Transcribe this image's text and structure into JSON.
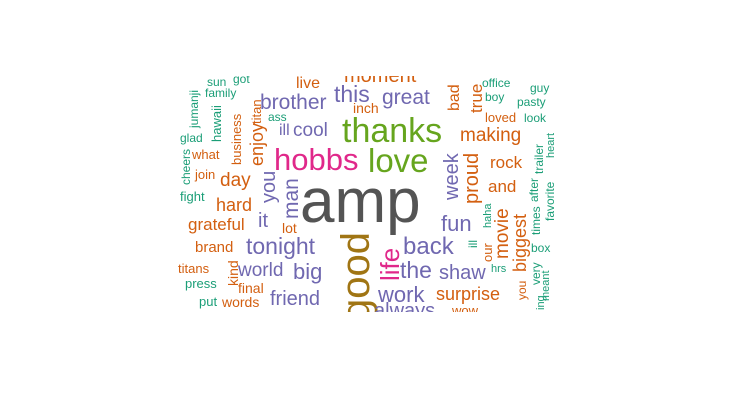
{
  "palette": {
    "grey": "#545454",
    "orange": "#d35f10",
    "purple": "#7068b0",
    "green": "#66a51e",
    "pink": "#e0288a",
    "gold": "#a07514",
    "teal": "#1b9e77"
  },
  "words": [
    {
      "text": "amp",
      "color": "grey"
    },
    {
      "text": "good",
      "color": "gold"
    },
    {
      "text": "thanks",
      "color": "green"
    },
    {
      "text": "love",
      "color": "green"
    },
    {
      "text": "hobbs",
      "color": "pink"
    },
    {
      "text": "life",
      "color": "pink"
    },
    {
      "text": "this",
      "color": "purple"
    },
    {
      "text": "great",
      "color": "purple"
    },
    {
      "text": "brother",
      "color": "purple"
    },
    {
      "text": "cool",
      "color": "purple"
    },
    {
      "text": "ill",
      "color": "purple"
    },
    {
      "text": "week",
      "color": "purple"
    },
    {
      "text": "you",
      "color": "purple"
    },
    {
      "text": "man",
      "color": "purple"
    },
    {
      "text": "it",
      "color": "purple"
    },
    {
      "text": "tonight",
      "color": "purple"
    },
    {
      "text": "big",
      "color": "purple"
    },
    {
      "text": "world",
      "color": "purple"
    },
    {
      "text": "friend",
      "color": "purple"
    },
    {
      "text": "back",
      "color": "purple"
    },
    {
      "text": "the",
      "color": "purple"
    },
    {
      "text": "work",
      "color": "purple"
    },
    {
      "text": "always",
      "color": "purple"
    },
    {
      "text": "shaw",
      "color": "purple"
    },
    {
      "text": "fun",
      "color": "purple"
    },
    {
      "text": "moment",
      "color": "orange"
    },
    {
      "text": "live",
      "color": "orange"
    },
    {
      "text": "inch",
      "color": "orange"
    },
    {
      "text": "bad",
      "color": "orange"
    },
    {
      "text": "true",
      "color": "orange"
    },
    {
      "text": "making",
      "color": "orange"
    },
    {
      "text": "proud",
      "color": "orange"
    },
    {
      "text": "rock",
      "color": "orange"
    },
    {
      "text": "and",
      "color": "orange"
    },
    {
      "text": "movie",
      "color": "orange"
    },
    {
      "text": "biggest",
      "color": "orange"
    },
    {
      "text": "surprise",
      "color": "orange"
    },
    {
      "text": "enjoy",
      "color": "orange"
    },
    {
      "text": "day",
      "color": "orange"
    },
    {
      "text": "hard",
      "color": "orange"
    },
    {
      "text": "grateful",
      "color": "orange"
    },
    {
      "text": "lot",
      "color": "orange"
    },
    {
      "text": "kind",
      "color": "orange"
    },
    {
      "text": "final",
      "color": "orange"
    },
    {
      "text": "words",
      "color": "orange"
    },
    {
      "text": "brand",
      "color": "orange"
    },
    {
      "text": "titans",
      "color": "orange"
    },
    {
      "text": "our",
      "color": "orange"
    },
    {
      "text": "you",
      "color": "orange"
    },
    {
      "text": "loved",
      "color": "orange"
    },
    {
      "text": "what",
      "color": "orange"
    },
    {
      "text": "join",
      "color": "orange"
    },
    {
      "text": "business",
      "color": "orange"
    },
    {
      "text": "titan",
      "color": "orange"
    },
    {
      "text": "wow",
      "color": "orange"
    },
    {
      "text": "office",
      "color": "teal"
    },
    {
      "text": "guy",
      "color": "teal"
    },
    {
      "text": "boy",
      "color": "teal"
    },
    {
      "text": "pasty",
      "color": "teal"
    },
    {
      "text": "look",
      "color": "teal"
    },
    {
      "text": "heart",
      "color": "teal"
    },
    {
      "text": "trailer",
      "color": "teal"
    },
    {
      "text": "after",
      "color": "teal"
    },
    {
      "text": "favorite",
      "color": "teal"
    },
    {
      "text": "times",
      "color": "teal"
    },
    {
      "text": "box",
      "color": "teal"
    },
    {
      "text": "very",
      "color": "teal"
    },
    {
      "text": "meant",
      "color": "teal"
    },
    {
      "text": "hrs",
      "color": "teal"
    },
    {
      "text": "haha",
      "color": "teal"
    },
    {
      "text": "ill",
      "color": "teal"
    },
    {
      "text": "jumanji",
      "color": "teal"
    },
    {
      "text": "sun",
      "color": "teal"
    },
    {
      "text": "got",
      "color": "teal"
    },
    {
      "text": "family",
      "color": "teal"
    },
    {
      "text": "hawaii",
      "color": "teal"
    },
    {
      "text": "ass",
      "color": "teal"
    },
    {
      "text": "glad",
      "color": "teal"
    },
    {
      "text": "cheers",
      "color": "teal"
    },
    {
      "text": "fight",
      "color": "teal"
    },
    {
      "text": "press",
      "color": "teal"
    },
    {
      "text": "put",
      "color": "teal"
    },
    {
      "text": "ing",
      "color": "teal"
    }
  ]
}
